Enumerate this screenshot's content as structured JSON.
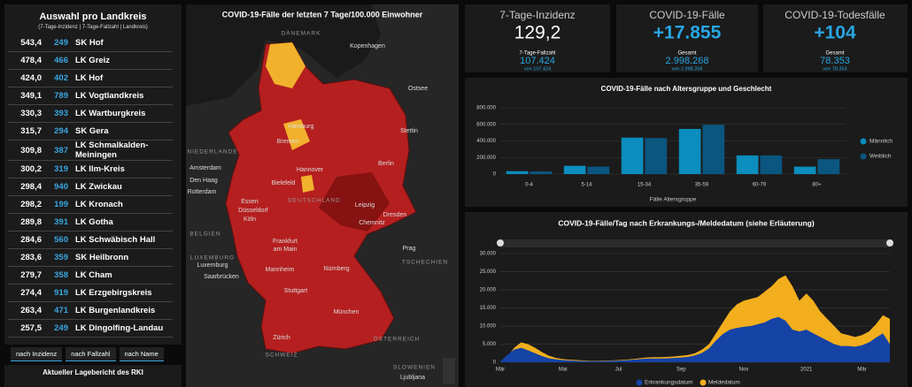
{
  "panel": {
    "title": "Auswahl pro Landkreis",
    "subtitle": "(7-Tage-Inzidenz | 7-Tage-Fallzahl | Landkreis)",
    "rows": [
      [
        "543,4",
        "249",
        "SK Hof"
      ],
      [
        "478,4",
        "466",
        "LK Greiz"
      ],
      [
        "424,0",
        "402",
        "LK Hof"
      ],
      [
        "349,1",
        "789",
        "LK Vogtlandkreis"
      ],
      [
        "330,3",
        "393",
        "LK Wartburgkreis"
      ],
      [
        "315,7",
        "294",
        "SK Gera"
      ],
      [
        "309,8",
        "387",
        "LK Schmalkalden-Meiningen"
      ],
      [
        "300,2",
        "319",
        "LK Ilm-Kreis"
      ],
      [
        "298,4",
        "940",
        "LK Zwickau"
      ],
      [
        "298,2",
        "199",
        "LK Kronach"
      ],
      [
        "289,8",
        "391",
        "LK Gotha"
      ],
      [
        "284,6",
        "560",
        "LK Schwäbisch Hall"
      ],
      [
        "283,6",
        "359",
        "SK Heilbronn"
      ],
      [
        "279,7",
        "358",
        "LK Cham"
      ],
      [
        "274,4",
        "919",
        "LK Erzgebirgskreis"
      ],
      [
        "263,4",
        "471",
        "LK Burgenlandkreis"
      ],
      [
        "257,5",
        "249",
        "LK Dingolfing-Landau"
      ]
    ],
    "tabs": [
      "nach Inzidenz",
      "nach Fallzahl",
      "nach Name"
    ],
    "footer": "Aktueller Lagebericht des RKI"
  },
  "map": {
    "title": "COVID-19-Fälle der letzten 7 Tage/100.000 Einwohner",
    "labels": [
      "DÄNEMARK",
      "Kopenhagen",
      "Ostsee",
      "Hamburg",
      "Bremen",
      "Stettin",
      "NIEDERLANDE",
      "Amsterdam",
      "Den Haag",
      "Rotterdam",
      "Hannover",
      "Berlin",
      "Bielefeld",
      "Essen",
      "Düsseldorf",
      "Köln",
      "DEUTSCHLAND",
      "Leipzig",
      "Dresden",
      "Chemnitz",
      "BELGIEN",
      "Frankfurt",
      "am Main",
      "Prag",
      "TSCHECHIEN",
      "LUXEMBURG",
      "Luxemburg",
      "Mannheim",
      "Nürnberg",
      "Saarbrücken",
      "Stuttgart",
      "München",
      "Zürich",
      "SCHWEIZ",
      "ÖSTERREICH",
      "SLOWENIEN",
      "Ljubljana"
    ]
  },
  "kpis": [
    {
      "title": "7-Tage-Inzidenz",
      "value": "129,2",
      "sub": "7-Tage-Fallzahl",
      "subvalue": "107.424",
      "note": "von 107.424"
    },
    {
      "title": "COVID-19-Fälle",
      "value": "+17.855",
      "sub": "Gesamt",
      "subvalue": "2.998.268",
      "note": "von 2.998.268"
    },
    {
      "title": "COVID-19-Todesfälle",
      "value": "+104",
      "sub": "Gesamt",
      "subvalue": "78.353",
      "note": "von 78.353"
    }
  ],
  "chart_data": [
    {
      "type": "bar",
      "title": "COVID-19-Fälle nach Altersgruppe und Geschlecht",
      "x_label": "Fälle Altersgruppe",
      "categories": [
        "0-4",
        "5-14",
        "15-34",
        "35-59",
        "60-79",
        "80+"
      ],
      "series": [
        {
          "name": "Männlich",
          "color": "#0b8dbd",
          "values": [
            35000,
            100000,
            440000,
            545000,
            225000,
            90000
          ]
        },
        {
          "name": "Weiblich",
          "color": "#0a5680",
          "values": [
            32000,
            90000,
            435000,
            595000,
            225000,
            180000
          ]
        }
      ],
      "ylim": [
        0,
        800000
      ],
      "yticks": [
        0,
        {
          "value": 200000,
          "label": "200.000"
        },
        {
          "value": 400000,
          "label": "400.000"
        },
        {
          "value": 600000,
          "label": "600.000"
        },
        {
          "value": 800000,
          "label": "800.000"
        }
      ],
      "legend": "right"
    },
    {
      "type": "area",
      "title": "COVID-19-Fälle/Tag nach Erkrankungs-/Meldedatum (siehe Erläuterung)",
      "categories": [
        "Mär",
        null,
        null,
        null,
        null,
        null,
        null,
        null,
        null,
        "Mai",
        null,
        null,
        null,
        null,
        null,
        null,
        null,
        "Jul",
        null,
        null,
        null,
        null,
        null,
        null,
        null,
        null,
        "Sep",
        null,
        null,
        null,
        null,
        null,
        null,
        null,
        null,
        "Nov",
        null,
        null,
        null,
        null,
        null,
        null,
        null,
        null,
        "2021",
        null,
        null,
        null,
        null,
        null,
        null,
        null,
        "Mär",
        null,
        null,
        null,
        null
      ],
      "series": [
        {
          "name": "Meldedatum",
          "color": "#f2ae1c",
          "values": [
            100,
            1500,
            4000,
            5500,
            5000,
            4000,
            2800,
            1800,
            1200,
            900,
            700,
            600,
            500,
            400,
            400,
            450,
            500,
            600,
            700,
            900,
            1100,
            1300,
            1400,
            1400,
            1500,
            1600,
            1800,
            2000,
            2500,
            3500,
            5000,
            8000,
            11000,
            14000,
            16000,
            17000,
            17500,
            18000,
            19500,
            21000,
            23000,
            24000,
            21000,
            17000,
            19000,
            17000,
            14000,
            12000,
            10000,
            8000,
            7500,
            7000,
            7500,
            8500,
            10500,
            13000,
            12000
          ]
        },
        {
          "name": "Erkrankungsdatum",
          "color": "#1543a6",
          "values": [
            200,
            2000,
            3500,
            4000,
            3300,
            2500,
            1700,
            1100,
            800,
            600,
            500,
            400,
            350,
            300,
            300,
            350,
            400,
            450,
            550,
            700,
            850,
            1000,
            1050,
            1050,
            1100,
            1200,
            1300,
            1500,
            1900,
            2600,
            3800,
            6000,
            7800,
            9000,
            9500,
            9800,
            10000,
            10500,
            11000,
            12000,
            12500,
            11500,
            9000,
            8500,
            9000,
            8000,
            7000,
            6000,
            5000,
            4500,
            4500,
            4300,
            4700,
            5500,
            6800,
            8000,
            5000
          ]
        }
      ],
      "ylim": [
        0,
        31000
      ],
      "yticks": [
        0,
        {
          "value": 5000,
          "label": "5.000"
        },
        {
          "value": 10000,
          "label": "10.000"
        },
        {
          "value": 15000,
          "label": "15.000"
        },
        {
          "value": 20000,
          "label": "20.000"
        },
        {
          "value": 25000,
          "label": "25.000"
        },
        {
          "value": 30000,
          "label": "30.000"
        }
      ],
      "grid": true,
      "legend": "bottom"
    }
  ]
}
